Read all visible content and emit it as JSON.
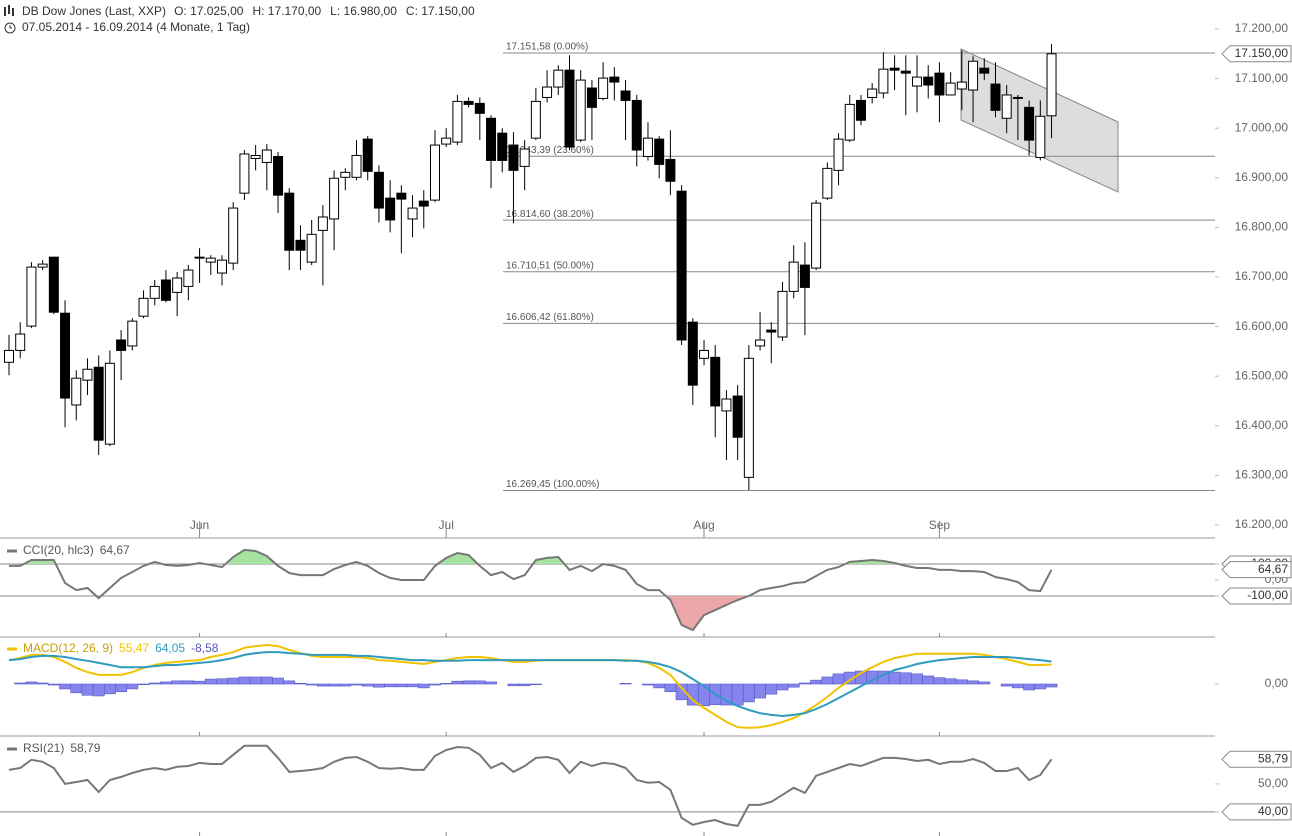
{
  "chart_data": [
    {
      "type": "candlestick",
      "title": "DB Dow Jones (Last, XXP)",
      "ohlc_labels": [
        "O: 17.025,00",
        "H: 17.170,00",
        "L: 16.980,00",
        "C: 17.150,00"
      ],
      "subtitle": "07.05.2014 - 16.09.2014 (4 Monate, 1 Tag)",
      "up_color": "#ffffff",
      "down_color": "#000000",
      "open": [
        16528,
        16552,
        16601,
        16720,
        16740,
        16627,
        16442,
        16492,
        16518,
        16363,
        16573,
        16561,
        16621,
        16657,
        16694,
        16669,
        16681,
        16740,
        16730,
        16708,
        16728,
        16869,
        16939,
        16931,
        16943,
        16869,
        16774,
        16730,
        16794,
        16817,
        16901,
        16901,
        16978,
        16911,
        16859,
        16869,
        16817,
        16853,
        16855,
        16968,
        16972,
        17054,
        17050,
        17020,
        16990,
        16966,
        16923,
        16980,
        17062,
        17083,
        17117,
        16976,
        17081,
        17060,
        17103,
        17075,
        17056,
        16943,
        16978,
        16937,
        16873,
        16609,
        16536,
        16538,
        16430,
        16460,
        16296,
        16561,
        16593,
        16579,
        16671,
        16724,
        16718,
        16859,
        16915,
        16976,
        17056,
        17062,
        17071,
        17121,
        17115,
        17085,
        17103,
        17111,
        17067,
        17079,
        17077,
        17121,
        17089,
        17020,
        17062,
        17042,
        16941,
        17025
      ],
      "high": [
        16583,
        16609,
        16730,
        16734,
        16740,
        16653,
        16512,
        16536,
        16542,
        16552,
        16593,
        16617,
        16673,
        16694,
        16714,
        16710,
        16724,
        16758,
        16744,
        16744,
        16851,
        16956,
        16966,
        16968,
        16952,
        16879,
        16804,
        16815,
        16845,
        16915,
        16919,
        16976,
        16984,
        16925,
        16895,
        16885,
        16865,
        16875,
        16996,
        17000,
        17067,
        17062,
        17062,
        17026,
        17000,
        16992,
        16976,
        17081,
        17117,
        17127,
        17147,
        17117,
        17097,
        17133,
        17123,
        17097,
        17067,
        17012,
        16984,
        16996,
        16885,
        16617,
        16573,
        16563,
        16472,
        16482,
        16563,
        16629,
        16609,
        16690,
        16764,
        16770,
        16855,
        16931,
        16990,
        17067,
        17067,
        17091,
        17153,
        17147,
        17147,
        17147,
        17127,
        17133,
        17113,
        17157,
        17145,
        17141,
        17133,
        17087,
        17067,
        17056,
        17056,
        17170
      ],
      "low": [
        16502,
        16536,
        16597,
        16714,
        16625,
        16397,
        16411,
        16462,
        16341,
        16359,
        16492,
        16552,
        16617,
        16643,
        16649,
        16621,
        16653,
        16688,
        16704,
        16683,
        16714,
        16855,
        16915,
        16875,
        16829,
        16714,
        16714,
        16724,
        16683,
        16754,
        16875,
        16895,
        16895,
        16810,
        16790,
        16748,
        16780,
        16798,
        16851,
        16962,
        16966,
        17042,
        16976,
        16879,
        16911,
        16808,
        16875,
        16976,
        17052,
        17067,
        16956,
        16972,
        16976,
        17056,
        17056,
        16976,
        16923,
        16935,
        16899,
        16865,
        16563,
        16442,
        16522,
        16377,
        16331,
        16331,
        16270,
        16552,
        16526,
        16571,
        16657,
        16583,
        16714,
        16855,
        16885,
        16972,
        17006,
        17050,
        17060,
        17077,
        17026,
        17032,
        17060,
        17012,
        17067,
        17036,
        17012,
        17097,
        17022,
        16990,
        16976,
        16945,
        16935,
        16980
      ],
      "close": [
        16552,
        16585,
        16720,
        16726,
        16629,
        16456,
        16496,
        16514,
        16371,
        16526,
        16552,
        16611,
        16657,
        16681,
        16653,
        16698,
        16714,
        16738,
        16738,
        16734,
        16839,
        16948,
        16945,
        16956,
        16865,
        16754,
        16754,
        16786,
        16821,
        16899,
        16911,
        16945,
        16913,
        16839,
        16815,
        16857,
        16839,
        16843,
        16966,
        16980,
        17054,
        17048,
        17030,
        16935,
        16935,
        16915,
        16958,
        17054,
        17083,
        17117,
        16962,
        17097,
        17042,
        17101,
        17093,
        17056,
        16956,
        16980,
        16927,
        16893,
        16573,
        16482,
        16552,
        16440,
        16454,
        16377,
        16536,
        16573,
        16589,
        16671,
        16730,
        16679,
        16849,
        16919,
        16978,
        17048,
        17016,
        17079,
        17119,
        17117,
        17111,
        17103,
        17087,
        17067,
        17091,
        17093,
        17135,
        17111,
        17036,
        17067,
        17060,
        16976,
        17024,
        17150
      ],
      "ylim": [
        16200,
        17200
      ],
      "yticks": [
        {
          "value": 17200,
          "label": "17.200,00"
        },
        {
          "value": 17100,
          "label": "17.100,00"
        },
        {
          "value": 17000,
          "label": "17.000,00"
        },
        {
          "value": 16900,
          "label": "16.900,00"
        },
        {
          "value": 16800,
          "label": "16.800,00"
        },
        {
          "value": 16700,
          "label": "16.700,00"
        },
        {
          "value": 16600,
          "label": "16.600,00"
        },
        {
          "value": 16500,
          "label": "16.500,00"
        },
        {
          "value": 16400,
          "label": "16.400,00"
        },
        {
          "value": 16300,
          "label": "16.300,00"
        },
        {
          "value": 16200,
          "label": "16.200,00"
        }
      ],
      "xticks": [
        {
          "value": 17,
          "label": "Jun"
        },
        {
          "value": 39,
          "label": "Jul"
        },
        {
          "value": 62,
          "label": "Aug"
        },
        {
          "value": 83,
          "label": "Sep"
        }
      ],
      "fib_levels": [
        {
          "value": 17151.58,
          "label": "17.151,58 (0.00%)"
        },
        {
          "value": 16943.39,
          "label": "16.943,39 (23.60%)"
        },
        {
          "value": 16814.6,
          "label": "16.814,60 (38.20%)"
        },
        {
          "value": 16710.51,
          "label": "16.710,51 (50.00%)"
        },
        {
          "value": 16606.42,
          "label": "16.606,42 (61.80%)"
        },
        {
          "value": 16269.45,
          "label": "16.269,45 (100.00%)"
        }
      ],
      "last_price": {
        "value": 17150,
        "label": "17.150,00"
      }
    },
    {
      "type": "line",
      "series": [
        {
          "name": "CCI(20, hlc3)",
          "color": "#777777",
          "value_label": "64,67",
          "values": [
            88,
            88,
            125,
            125,
            125,
            -19,
            -63,
            -50,
            -113,
            -50,
            13,
            50,
            88,
            113,
            94,
            88,
            94,
            106,
            94,
            81,
            144,
            188,
            181,
            150,
            88,
            44,
            31,
            31,
            31,
            69,
            94,
            113,
            88,
            44,
            13,
            0,
            0,
            0,
            88,
            138,
            169,
            156,
            88,
            31,
            50,
            6,
            31,
            125,
            138,
            144,
            63,
            88,
            56,
            100,
            88,
            63,
            -25,
            -63,
            -63,
            -125,
            -281,
            -313,
            -219,
            -188,
            -156,
            -125,
            -100,
            -63,
            -50,
            -38,
            -19,
            -13,
            25,
            63,
            81,
            113,
            119,
            125,
            119,
            106,
            88,
            75,
            75,
            63,
            63,
            56,
            56,
            50,
            19,
            6,
            -13,
            -63,
            -69,
            64.67
          ]
        }
      ],
      "ylim": [
        -356,
        250
      ],
      "yticks": [
        {
          "value": 100,
          "label": "100,00"
        },
        {
          "value": 0,
          "label": "0,00"
        },
        {
          "value": -100,
          "label": "-100,00"
        }
      ],
      "levels": [
        100,
        -100
      ],
      "level_fills": [
        "#a6e3a0",
        "#eba7a9"
      ]
    },
    {
      "type": "macd",
      "legend": "MACD(12, 26, 9)",
      "series": [
        {
          "color": "#f2c200",
          "style": "line",
          "value_label": "55,47",
          "values": [
            68,
            74,
            83,
            83,
            77,
            63,
            46,
            34,
            26,
            26,
            26,
            34,
            46,
            54,
            60,
            63,
            66,
            68,
            77,
            83,
            91,
            103,
            108,
            111,
            108,
            97,
            88,
            80,
            77,
            77,
            77,
            77,
            74,
            68,
            66,
            63,
            60,
            57,
            63,
            68,
            74,
            77,
            77,
            74,
            68,
            63,
            63,
            66,
            68,
            68,
            68,
            68,
            68,
            68,
            68,
            68,
            66,
            60,
            46,
            26,
            -11,
            -46,
            -68,
            -88,
            -108,
            -123,
            -125,
            -123,
            -117,
            -108,
            -97,
            -80,
            -60,
            -37,
            -11,
            11,
            31,
            48,
            63,
            74,
            80,
            86,
            86,
            86,
            86,
            86,
            86,
            83,
            77,
            71,
            63,
            54,
            54,
            55.47
          ]
        },
        {
          "color": "#2f9bbf",
          "style": "line",
          "value_label": "64,05",
          "values": [
            68,
            71,
            77,
            80,
            80,
            77,
            71,
            66,
            60,
            54,
            48,
            48,
            48,
            51,
            54,
            54,
            57,
            60,
            63,
            68,
            74,
            83,
            88,
            91,
            91,
            88,
            86,
            83,
            83,
            83,
            83,
            80,
            80,
            77,
            74,
            71,
            68,
            68,
            66,
            66,
            66,
            68,
            68,
            68,
            68,
            68,
            68,
            68,
            68,
            68,
            68,
            68,
            68,
            68,
            68,
            66,
            66,
            63,
            57,
            48,
            34,
            14,
            -6,
            -29,
            -48,
            -63,
            -74,
            -83,
            -88,
            -91,
            -88,
            -83,
            -71,
            -57,
            -40,
            -23,
            -6,
            11,
            26,
            40,
            48,
            57,
            63,
            68,
            71,
            74,
            77,
            77,
            77,
            77,
            74,
            71,
            68,
            64.05
          ]
        },
        {
          "color": "#8585ee",
          "style": "bar",
          "value_label": "-8,58",
          "values": [
            0,
            3,
            6,
            3,
            -3,
            -14,
            -25,
            -32,
            -34,
            -28,
            -22,
            -14,
            -2,
            3,
            6,
            9,
            9,
            8,
            14,
            15,
            17,
            20,
            20,
            20,
            17,
            9,
            2,
            -3,
            -6,
            -6,
            -6,
            -3,
            -6,
            -9,
            -8,
            -8,
            -8,
            -11,
            -3,
            2,
            8,
            9,
            9,
            6,
            0,
            -5,
            -5,
            -2,
            0,
            0,
            0,
            0,
            0,
            0,
            0,
            2,
            0,
            -3,
            -11,
            -22,
            -45,
            -60,
            -62,
            -59,
            -60,
            -60,
            -51,
            -40,
            -29,
            -17,
            -9,
            3,
            11,
            20,
            29,
            34,
            37,
            37,
            37,
            34,
            32,
            29,
            23,
            18,
            15,
            12,
            9,
            6,
            0,
            -6,
            -11,
            -17,
            -14,
            -8.58
          ]
        }
      ],
      "ylim": [
        -148,
        131
      ],
      "yticks": [
        {
          "value": 0,
          "label": "0,00"
        }
      ]
    },
    {
      "type": "line",
      "series": [
        {
          "name": "RSI(21)",
          "color": "#777777",
          "value_label": "58,79",
          "values": [
            55,
            55.7,
            58.6,
            57.9,
            55.7,
            50,
            50.7,
            51.4,
            47.1,
            51.4,
            52.5,
            53.9,
            55,
            55.7,
            55,
            56.1,
            56.4,
            57.5,
            57.1,
            57.1,
            60.4,
            63.6,
            63.6,
            63.6,
            59.3,
            54.3,
            54.6,
            55,
            55.7,
            57.9,
            59.3,
            59.6,
            57.9,
            55.7,
            55.4,
            55.7,
            55,
            55,
            60,
            62.1,
            63.2,
            62.9,
            60.4,
            55.7,
            57.5,
            54.3,
            56.4,
            59.3,
            59.6,
            58.6,
            53.9,
            57.9,
            56.4,
            57.5,
            57.1,
            55.7,
            51.4,
            50.4,
            50.7,
            47.9,
            37.9,
            35.4,
            36.4,
            37.1,
            35.7,
            35,
            42.5,
            42.5,
            43.6,
            46.1,
            48.6,
            46.8,
            52.9,
            54.3,
            55.7,
            57.1,
            56.4,
            57.9,
            59.3,
            59.3,
            58.9,
            58.2,
            58.6,
            57.1,
            57.9,
            57.9,
            58.9,
            57.5,
            54.6,
            54.6,
            55.7,
            51.4,
            53.2,
            58.79
          ]
        }
      ],
      "ylim": [
        31.4,
        66.4
      ],
      "yticks": [
        {
          "value": 50,
          "label": "50,00"
        },
        {
          "value": 40,
          "label": "40,00"
        }
      ],
      "levels": [
        40
      ]
    }
  ]
}
